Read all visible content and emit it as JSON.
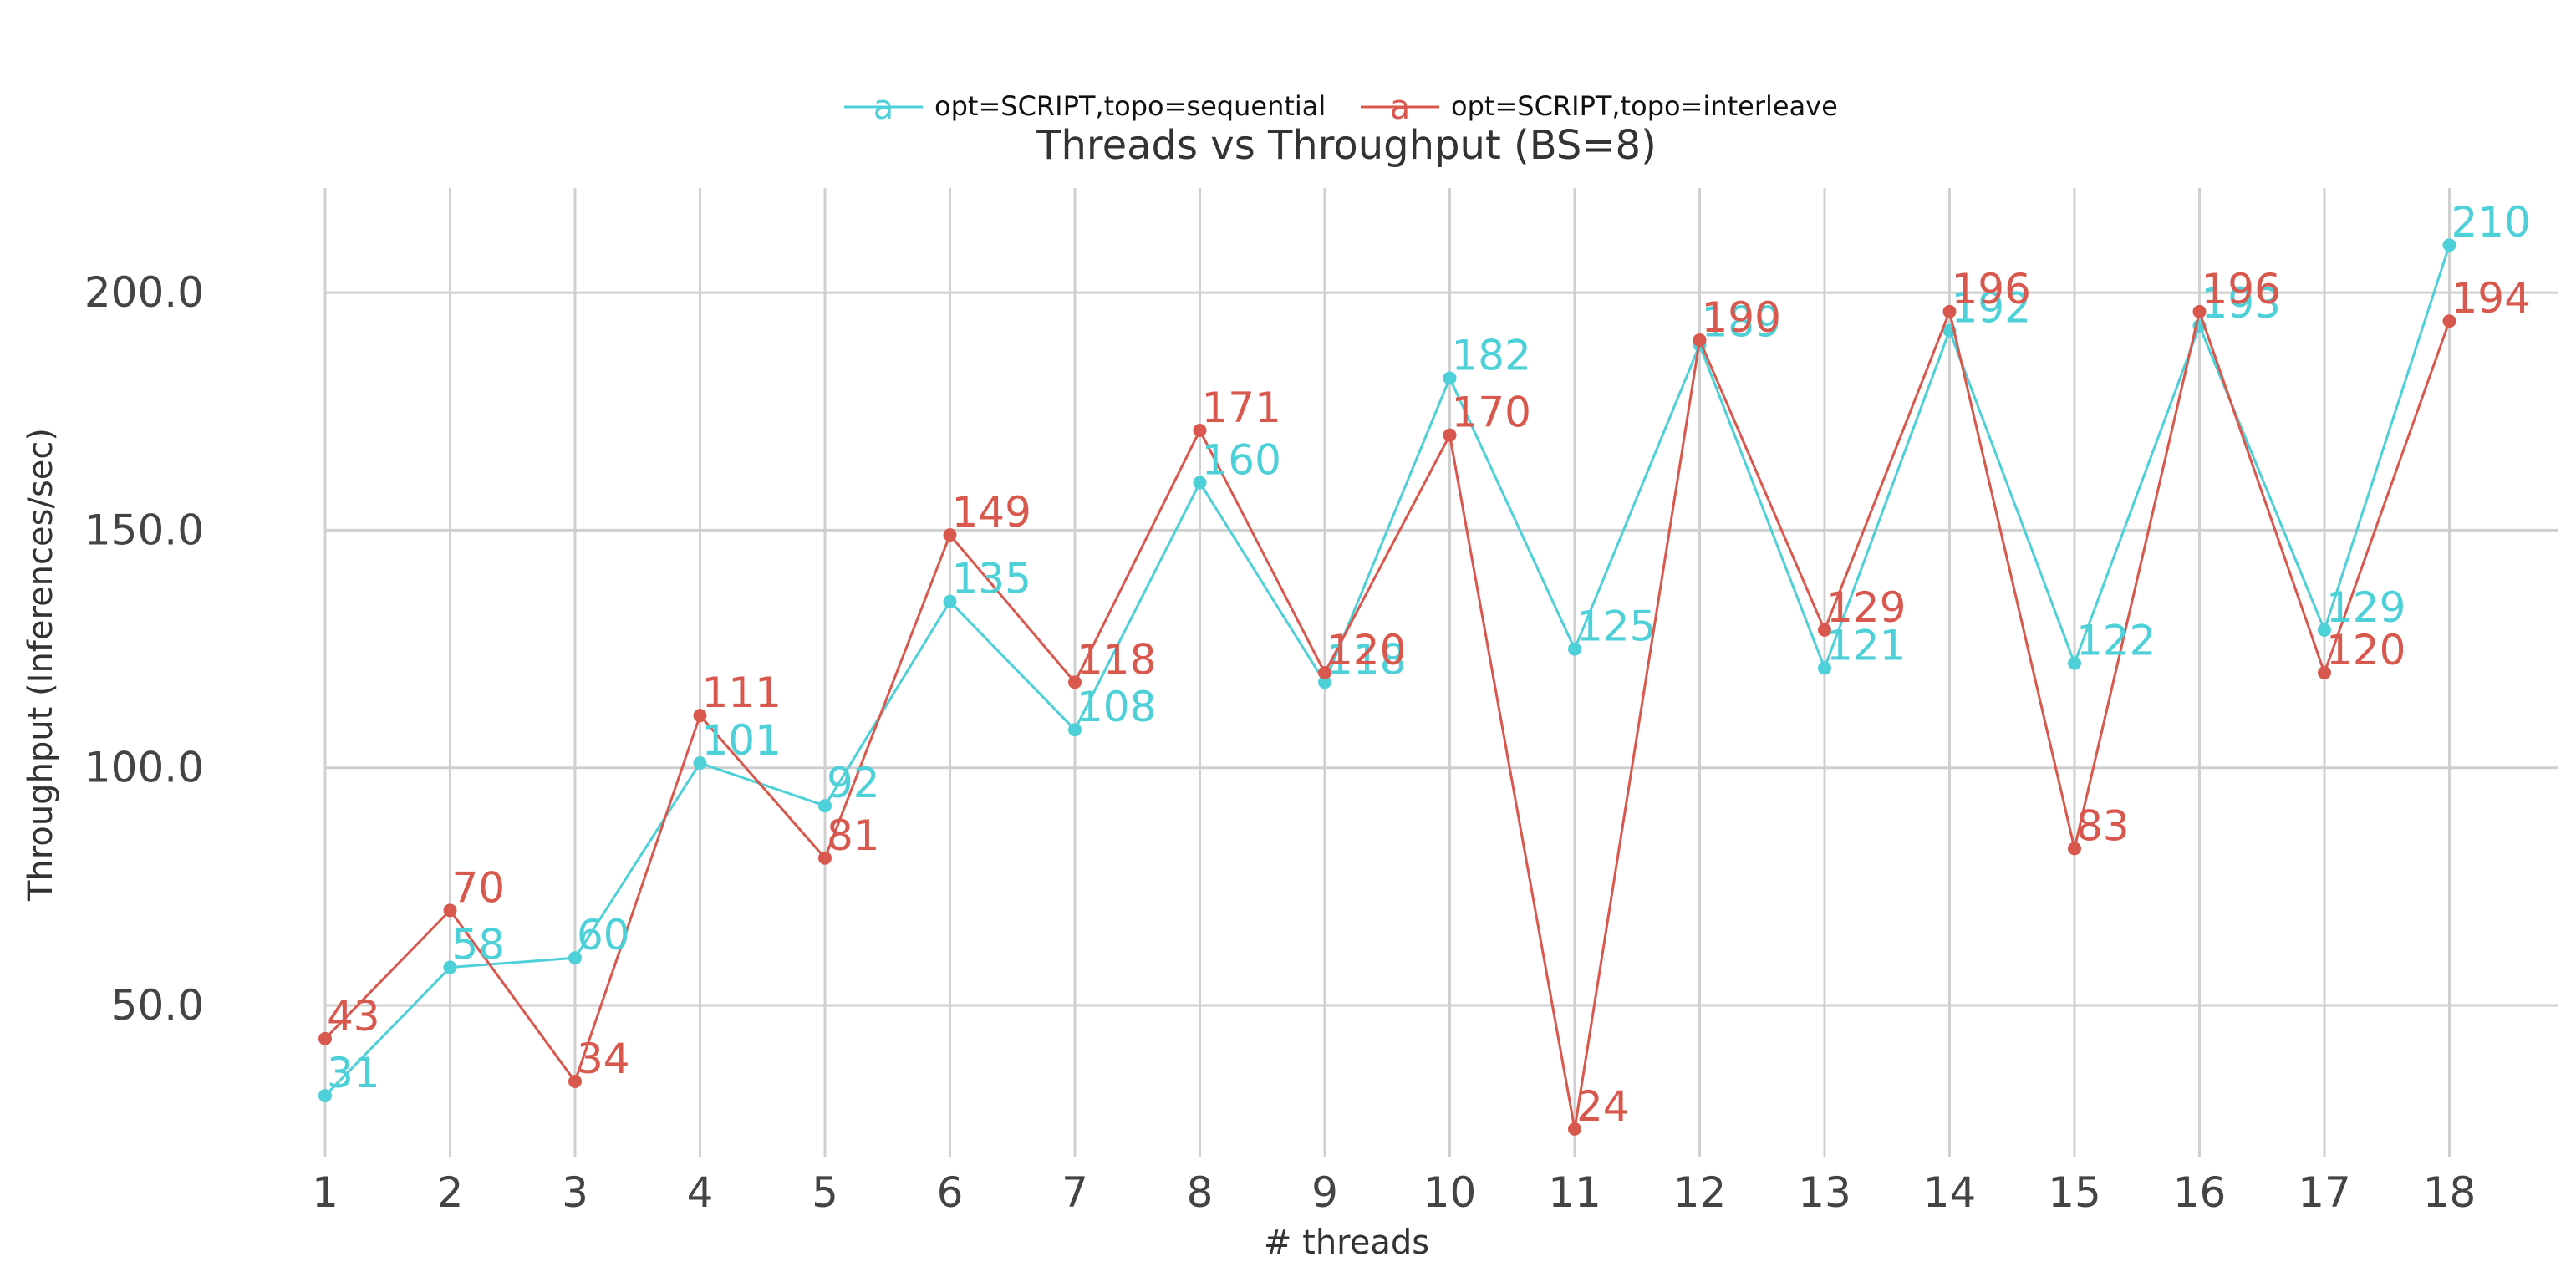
{
  "chart_data": {
    "type": "line",
    "title": "Threads vs Throughput (BS=8)",
    "xlabel": "# threads",
    "ylabel": "Throughput (Inferences/sec)",
    "x": [
      1,
      2,
      3,
      4,
      5,
      6,
      7,
      8,
      9,
      10,
      11,
      12,
      13,
      14,
      15,
      16,
      17,
      18
    ],
    "ylim": [
      18,
      222
    ],
    "yticks": [
      50.0,
      100.0,
      150.0,
      200.0
    ],
    "ytick_labels": [
      "50.0",
      "100.0",
      "150.0",
      "200.0"
    ],
    "grid": true,
    "legend_position": "top-center",
    "series": [
      {
        "name": "opt=SCRIPT,topo=sequential",
        "color": "#4dd0d8",
        "values": [
          31,
          58,
          60,
          101,
          92,
          135,
          108,
          160,
          118,
          182,
          125,
          189,
          121,
          192,
          122,
          193,
          129,
          210
        ],
        "labels": [
          "31",
          "58",
          "60",
          "101",
          "92",
          "135",
          "108",
          "160",
          "118",
          "182",
          "125",
          "189",
          "121",
          "192",
          "122",
          "193",
          "129",
          "210"
        ]
      },
      {
        "name": "opt=SCRIPT,topo=interleave",
        "color": "#d9584e",
        "values": [
          43,
          70,
          34,
          111,
          81,
          149,
          118,
          171,
          120,
          170,
          24,
          190,
          129,
          196,
          83,
          196,
          120,
          194
        ],
        "labels": [
          "43",
          "70",
          "34",
          "111",
          "81",
          "149",
          "118",
          "171",
          "120",
          "170",
          "24",
          "190",
          "129",
          "196",
          "83",
          "196",
          "120",
          "194"
        ]
      }
    ],
    "legend_glyph": "a"
  }
}
